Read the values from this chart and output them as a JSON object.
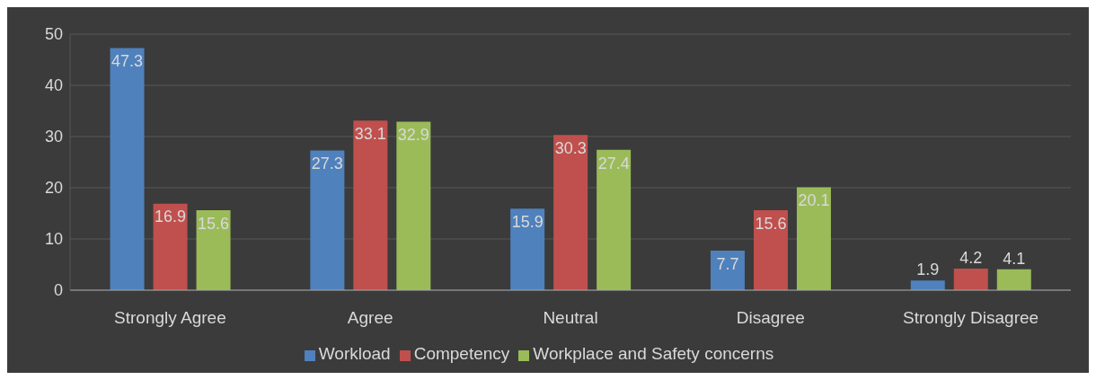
{
  "chart_data": {
    "type": "bar",
    "categories": [
      "Strongly Agree",
      "Agree",
      "Neutral",
      "Disagree",
      "Strongly Disagree"
    ],
    "series": [
      {
        "name": "Workload",
        "color": "#4f81bd",
        "values": [
          47.3,
          27.3,
          15.9,
          7.7,
          1.9
        ]
      },
      {
        "name": "Competency",
        "color": "#c0504d",
        "values": [
          16.9,
          33.1,
          30.3,
          15.6,
          4.2
        ]
      },
      {
        "name": "Workplace and Safety concerns",
        "color": "#9bbb59",
        "values": [
          15.6,
          32.9,
          27.4,
          20.1,
          4.1
        ]
      }
    ],
    "ylim": [
      0,
      50
    ],
    "yticks": [
      0,
      10,
      20,
      30,
      40,
      50
    ],
    "grid": "y",
    "legend": "bottom",
    "data_labels": true
  }
}
